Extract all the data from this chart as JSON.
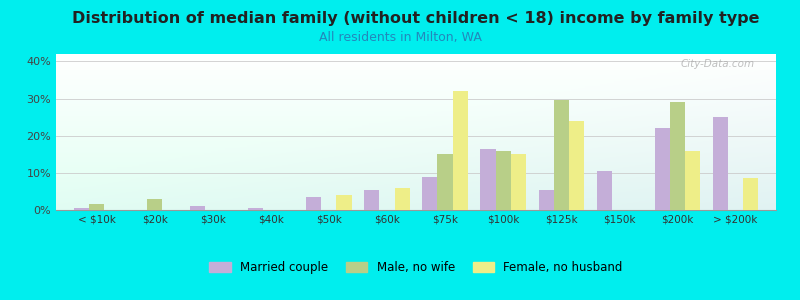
{
  "title": "Distribution of median family (without children < 18) income by family type",
  "subtitle": "All residents in Milton, WA",
  "categories": [
    "< $10k",
    "$20k",
    "$30k",
    "$40k",
    "$50k",
    "$60k",
    "$75k",
    "$100k",
    "$125k",
    "$150k",
    "$200k",
    "> $200k"
  ],
  "married_couple": [
    0.5,
    0.0,
    1.0,
    0.5,
    3.5,
    5.5,
    9.0,
    16.5,
    5.5,
    10.5,
    22.0,
    25.0
  ],
  "male_no_wife": [
    1.5,
    3.0,
    0.0,
    0.0,
    0.0,
    0.0,
    15.0,
    16.0,
    29.5,
    0.0,
    29.0,
    0.0
  ],
  "female_no_husband": [
    0.0,
    0.0,
    0.0,
    0.0,
    4.0,
    6.0,
    32.0,
    15.0,
    24.0,
    0.0,
    16.0,
    8.5
  ],
  "bar_colors": {
    "married_couple": "#c4aed8",
    "male_no_wife": "#b8cf88",
    "female_no_husband": "#eeee88"
  },
  "background_color": "#00eeee",
  "ylim": [
    0,
    42
  ],
  "yticks": [
    0,
    10,
    20,
    30,
    40
  ],
  "ytick_labels": [
    "0%",
    "10%",
    "20%",
    "30%",
    "40%"
  ],
  "title_fontsize": 11.5,
  "subtitle_fontsize": 9,
  "subtitle_color": "#2288bb",
  "watermark": "City-Data.com",
  "legend_labels": [
    "Married couple",
    "Male, no wife",
    "Female, no husband"
  ]
}
